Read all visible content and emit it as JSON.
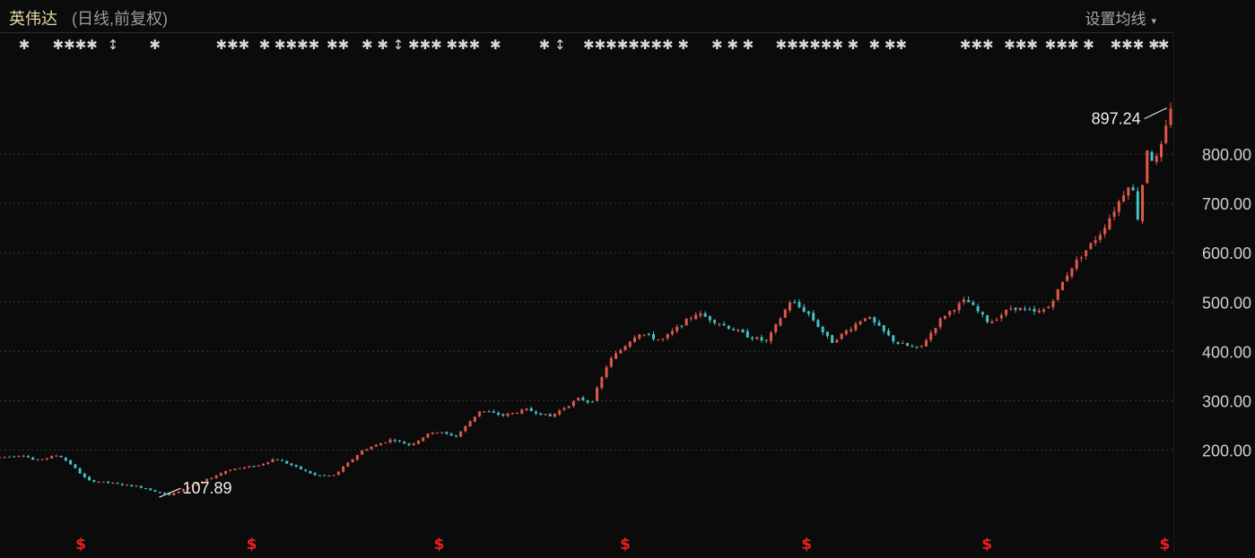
{
  "header": {
    "title": "英伟达",
    "subtitle": "(日线,前复权)",
    "settings_label": "设置均线",
    "settings_caret": "▾"
  },
  "colors": {
    "background": "#0b0b0b",
    "up_candle": "#e0584a",
    "down_candle": "#3fc4c4",
    "grid": "#3a3a3a",
    "event_marker": "#d8d8d8",
    "dividend_marker": "#e8201f"
  },
  "event_markers": [
    {
      "glyph": "✱",
      "pos": 0.016
    },
    {
      "glyph": "✱✱✱✱",
      "pos": 0.045
    },
    {
      "glyph": "↕",
      "pos": 0.092
    },
    {
      "glyph": "✱",
      "pos": 0.128
    },
    {
      "glyph": "✱✱✱",
      "pos": 0.185
    },
    {
      "glyph": "✱ ✱✱✱✱",
      "pos": 0.222
    },
    {
      "glyph": "✱✱",
      "pos": 0.28
    },
    {
      "glyph": "✱ ✱ ↕",
      "pos": 0.31
    },
    {
      "glyph": "✱✱✱ ✱✱✱",
      "pos": 0.35
    },
    {
      "glyph": "✱",
      "pos": 0.42
    },
    {
      "glyph": "✱ ↕",
      "pos": 0.462
    },
    {
      "glyph": "✱✱✱✱✱✱✱✱ ✱",
      "pos": 0.5
    },
    {
      "glyph": "✱ ✱ ✱",
      "pos": 0.61
    },
    {
      "glyph": "✱✱✱✱✱✱ ✱",
      "pos": 0.665
    },
    {
      "glyph": "✱ ✱✱",
      "pos": 0.745
    },
    {
      "glyph": "✱✱✱",
      "pos": 0.823
    },
    {
      "glyph": "✱✱✱",
      "pos": 0.861
    },
    {
      "glyph": "✱✱✱ ✱",
      "pos": 0.896
    },
    {
      "glyph": "✱✱✱ ✱",
      "pos": 0.952
    },
    {
      "glyph": "✱",
      "pos": 0.993
    }
  ],
  "dividend_markers": {
    "glyph": "$",
    "positions": [
      0.069,
      0.215,
      0.375,
      0.534,
      0.689,
      0.843,
      0.995
    ]
  },
  "chart_data": {
    "type": "candlestick",
    "yticks": [
      "200.00",
      "300.00",
      "400.00",
      "500.00",
      "600.00",
      "700.00",
      "800.00"
    ],
    "ylim": [
      30,
      1000
    ],
    "grid": true,
    "grid_style": "dotted",
    "annotations": [
      {
        "label": "107.89",
        "value": 107.89,
        "kind": "low"
      },
      {
        "label": "897.24",
        "value": 897.24,
        "kind": "high"
      }
    ],
    "price_path": [
      [
        0,
        185
      ],
      [
        0.02,
        190
      ],
      [
        0.03,
        178
      ],
      [
        0.05,
        190
      ],
      [
        0.06,
        172
      ],
      [
        0.075,
        138
      ],
      [
        0.095,
        133
      ],
      [
        0.12,
        125
      ],
      [
        0.135,
        115
      ],
      [
        0.145,
        108
      ],
      [
        0.16,
        125
      ],
      [
        0.17,
        132
      ],
      [
        0.195,
        160
      ],
      [
        0.22,
        168
      ],
      [
        0.235,
        183
      ],
      [
        0.25,
        168
      ],
      [
        0.27,
        148
      ],
      [
        0.285,
        148
      ],
      [
        0.31,
        200
      ],
      [
        0.335,
        222
      ],
      [
        0.35,
        210
      ],
      [
        0.37,
        238
      ],
      [
        0.39,
        228
      ],
      [
        0.41,
        280
      ],
      [
        0.43,
        270
      ],
      [
        0.45,
        282
      ],
      [
        0.47,
        268
      ],
      [
        0.495,
        305
      ],
      [
        0.505,
        295
      ],
      [
        0.52,
        380
      ],
      [
        0.545,
        438
      ],
      [
        0.565,
        422
      ],
      [
        0.595,
        478
      ],
      [
        0.61,
        462
      ],
      [
        0.64,
        430
      ],
      [
        0.655,
        420
      ],
      [
        0.675,
        502
      ],
      [
        0.69,
        478
      ],
      [
        0.71,
        418
      ],
      [
        0.74,
        472
      ],
      [
        0.765,
        418
      ],
      [
        0.785,
        404
      ],
      [
        0.805,
        470
      ],
      [
        0.825,
        505
      ],
      [
        0.845,
        458
      ],
      [
        0.865,
        490
      ],
      [
        0.885,
        478
      ],
      [
        0.895,
        488
      ],
      [
        0.915,
        570
      ],
      [
        0.94,
        640
      ],
      [
        0.955,
        700
      ],
      [
        0.966,
        748
      ],
      [
        0.972,
        670
      ],
      [
        0.98,
        812
      ],
      [
        0.986,
        780
      ],
      [
        0.993,
        820
      ],
      [
        1.0,
        897
      ]
    ]
  }
}
